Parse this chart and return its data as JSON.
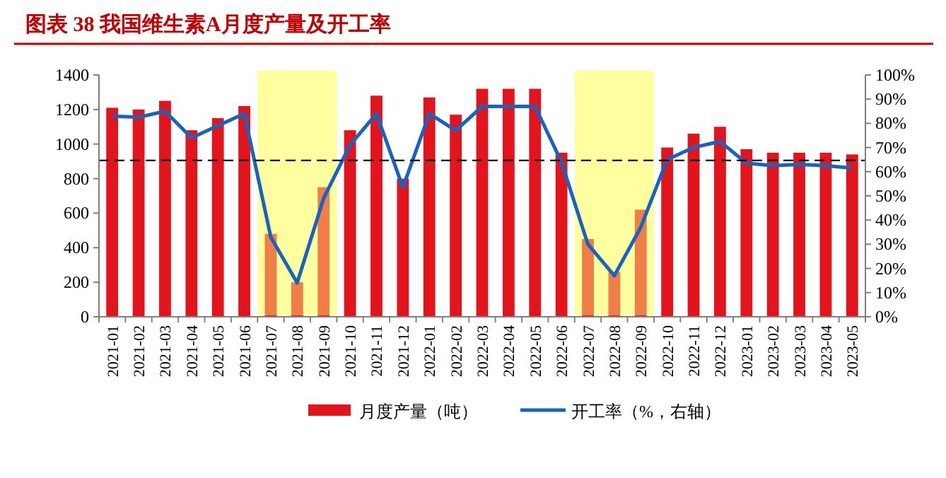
{
  "chart_data": {
    "type": "bar",
    "title": "图表 38 我国维生素A月度产量及开工率",
    "categories": [
      "2021-01",
      "2021-02",
      "2021-03",
      "2021-04",
      "2021-05",
      "2021-06",
      "2021-07",
      "2021-08",
      "2021-09",
      "2021-10",
      "2021-11",
      "2021-12",
      "2022-01",
      "2022-02",
      "2022-03",
      "2022-04",
      "2022-05",
      "2022-06",
      "2022-07",
      "2022-08",
      "2022-09",
      "2022-10",
      "2022-11",
      "2022-12",
      "2023-01",
      "2023-02",
      "2023-03",
      "2023-04",
      "2023-05"
    ],
    "series": [
      {
        "name": "月度产量（吨）",
        "color": "#e3141b",
        "values": [
          1210,
          1200,
          1250,
          1080,
          1150,
          1220,
          480,
          200,
          750,
          1080,
          1280,
          800,
          1270,
          1170,
          1320,
          1320,
          1320,
          950,
          450,
          260,
          620,
          980,
          1060,
          1100,
          970,
          950,
          950,
          950,
          940
        ]
      },
      {
        "name": "开工率（%，右轴）",
        "type": "line",
        "axis": "y2",
        "color": "#1565c0",
        "values": [
          83,
          82.5,
          85,
          74,
          79,
          84,
          33,
          14,
          49,
          71,
          84,
          53.5,
          84,
          77,
          87,
          87,
          87,
          64,
          30,
          17,
          37,
          65,
          70,
          72.5,
          63.5,
          62.5,
          63,
          62.5,
          61.5
        ]
      }
    ],
    "ylim": [
      0,
      1400
    ],
    "yticks": [
      0,
      200,
      400,
      600,
      800,
      1000,
      1200,
      1400
    ],
    "y2lim": [
      0,
      100
    ],
    "y2ticks": [
      {
        "value": 0,
        "label": "0%"
      },
      {
        "value": 10,
        "label": "10%"
      },
      {
        "value": 20,
        "label": "20%"
      },
      {
        "value": 30,
        "label": "30%"
      },
      {
        "value": 40,
        "label": "40%"
      },
      {
        "value": 50,
        "label": "50%"
      },
      {
        "value": 60,
        "label": "60%"
      },
      {
        "value": 70,
        "label": "70%"
      },
      {
        "value": 80,
        "label": "80%"
      },
      {
        "value": 90,
        "label": "90%"
      },
      {
        "value": 100,
        "label": "100%"
      }
    ],
    "ref_lines": [
      {
        "axis": "y",
        "value": 905,
        "color": "#000000",
        "line_style": "dashed"
      }
    ],
    "bands": [
      {
        "axis": "x",
        "from": "2021-07",
        "to": "2021-09",
        "color": "#ffff80"
      },
      {
        "axis": "x",
        "from": "2022-07",
        "to": "2022-09",
        "color": "#ffff80"
      }
    ],
    "grid": false,
    "legend": "bottom",
    "line_style": "solid",
    "marker": "none"
  }
}
